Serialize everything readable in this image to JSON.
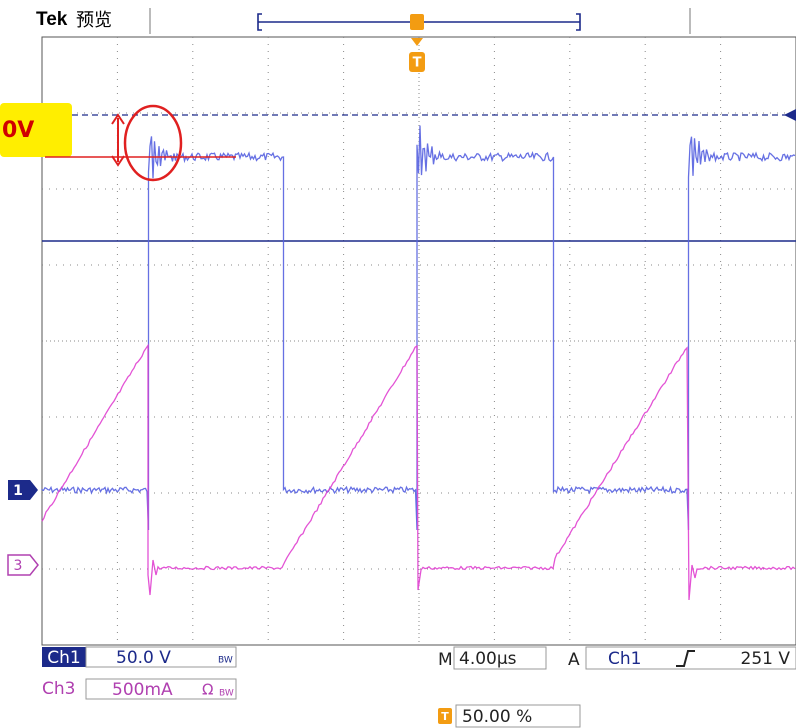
{
  "header": {
    "brand": "Tek",
    "mode": "预览"
  },
  "annotation": {
    "label": "0V"
  },
  "channel_markers": {
    "ch1": "1",
    "ch3": "3"
  },
  "trigger_marker": "T",
  "status": {
    "ch1": {
      "name": "Ch1",
      "scale": "50.0 V",
      "bw": "BW"
    },
    "ch3": {
      "name": "Ch3",
      "scale": "500mA",
      "coupling": "Ω",
      "bw": "BW"
    },
    "timebase": {
      "prefix": "M",
      "value": "4.00µs"
    },
    "trigger": {
      "prefix": "A",
      "source": "Ch1",
      "level": "251 V"
    },
    "position": {
      "marker": "T",
      "value": "50.00 %"
    }
  }
}
